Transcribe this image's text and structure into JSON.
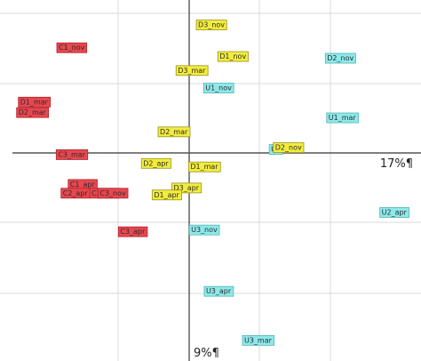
{
  "chart_data": {
    "type": "scatter",
    "title": "",
    "xlabel": "",
    "ylabel": "",
    "xlim": [
      -105,
      130
    ],
    "ylim": [
      -118,
      88
    ],
    "grid": true,
    "axis_labels": {
      "x": "17%¶",
      "y": "9%¶"
    },
    "groups": {
      "C": {
        "color": "#e8474f"
      },
      "D": {
        "color": "#f2ec3c"
      },
      "U": {
        "color": "#8ee9ea"
      }
    },
    "points": [
      {
        "label": "D3_nov",
        "group": "D",
        "x": 13,
        "y": 74
      },
      {
        "label": "C1_nov",
        "group": "C",
        "x": -65,
        "y": 61
      },
      {
        "label": "D1_nov",
        "group": "D",
        "x": 25,
        "y": 56
      },
      {
        "label": "D2_nov",
        "group": "U",
        "x": 85,
        "y": 55
      },
      {
        "label": "D3_mar",
        "group": "D",
        "x": 2,
        "y": 48
      },
      {
        "label": "U1_nov",
        "group": "U",
        "x": 17,
        "y": 38
      },
      {
        "label": "D1_mar",
        "group": "C",
        "x": -86,
        "y": 30
      },
      {
        "label": "D2_mar",
        "group": "C",
        "x": -87,
        "y": 24
      },
      {
        "label": "U1_mar",
        "group": "U",
        "x": 86,
        "y": 21
      },
      {
        "label": "D2_mar",
        "group": "D",
        "x": -8,
        "y": 13
      },
      {
        "label": "U1",
        "group": "U",
        "x": 49,
        "y": 3
      },
      {
        "label": "D2_nov",
        "group": "D",
        "x": 56,
        "y": 4
      },
      {
        "label": "C3_mar",
        "group": "C",
        "x": -65,
        "y": 0
      },
      {
        "label": "D2_apr",
        "group": "D",
        "x": -18,
        "y": -5
      },
      {
        "label": "D1_mar",
        "group": "D",
        "x": 9,
        "y": -7
      },
      {
        "label": "C1_apr",
        "group": "C",
        "x": -59,
        "y": -17
      },
      {
        "label": "C2_apr",
        "group": "C",
        "x": -63,
        "y": -22
      },
      {
        "label": "C3_apr",
        "group": "C",
        "x": -47,
        "y": -22
      },
      {
        "label": "C3_nov",
        "group": "C",
        "x": -42,
        "y": -22
      },
      {
        "label": "D3_apr",
        "group": "D",
        "x": -1,
        "y": -19
      },
      {
        "label": "D1_apr",
        "group": "D",
        "x": -12,
        "y": -23
      },
      {
        "label": "U2_apr",
        "group": "U",
        "x": 115,
        "y": -33
      },
      {
        "label": "U3_nov",
        "group": "U",
        "x": 9,
        "y": -43
      },
      {
        "label": "C3_apr",
        "group": "C",
        "x": -31,
        "y": -44
      },
      {
        "label": "U3_apr",
        "group": "U",
        "x": 17,
        "y": -78
      },
      {
        "label": "U3_mar",
        "group": "U",
        "x": 39,
        "y": -106
      }
    ]
  }
}
